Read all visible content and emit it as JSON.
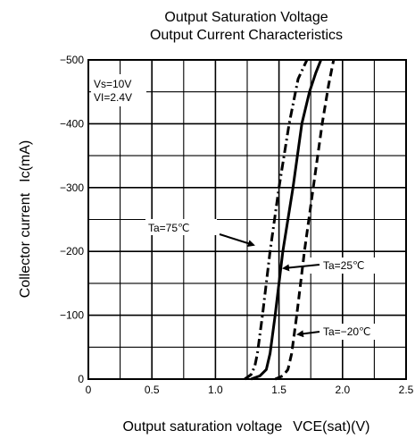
{
  "chart_data": {
    "type": "line",
    "title": [
      "Output Saturation Voltage",
      "Output Current Characteristics"
    ],
    "xlabel": "Output saturation voltage",
    "xlabel_symbol": "VCE(sat)(V)",
    "ylabel": "Collector current",
    "ylabel_symbol": "Ic(mA)",
    "xlim": [
      0,
      2.5
    ],
    "ylim": [
      0,
      -500
    ],
    "xticks": [
      {
        "v": 0,
        "label": "0"
      },
      {
        "v": 0.5,
        "label": "0.5"
      },
      {
        "v": 1.0,
        "label": "1.0"
      },
      {
        "v": 1.5,
        "label": "1.5"
      },
      {
        "v": 2.0,
        "label": "2.0"
      },
      {
        "v": 2.5,
        "label": "2.5"
      }
    ],
    "yticks": [
      {
        "v": 0,
        "label": "0"
      },
      {
        "v": -100,
        "label": "−100"
      },
      {
        "v": -200,
        "label": "−200"
      },
      {
        "v": -300,
        "label": "−300"
      },
      {
        "v": -400,
        "label": "−400"
      },
      {
        "v": -500,
        "label": "−500"
      }
    ],
    "grid": true,
    "grid_x_step": 0.25,
    "grid_y_step": 50,
    "conditions": [
      "Vs=10V",
      "VI=2.4V"
    ],
    "series": [
      {
        "name": "Ta=75℃",
        "style": "dash-dot",
        "x": [
          1.23,
          1.28,
          1.31,
          1.33,
          1.37,
          1.43,
          1.5,
          1.58,
          1.65,
          1.72
        ],
        "y": [
          0,
          -7,
          -20,
          -40,
          -100,
          -200,
          -300,
          -400,
          -470,
          -500
        ]
      },
      {
        "name": "Ta=25℃",
        "style": "solid",
        "x": [
          1.28,
          1.35,
          1.4,
          1.43,
          1.47,
          1.53,
          1.61,
          1.68,
          1.74,
          1.79,
          1.83
        ],
        "y": [
          0,
          -5,
          -15,
          -40,
          -100,
          -200,
          -300,
          -400,
          -450,
          -480,
          -500
        ]
      },
      {
        "name": "Ta=−20℃",
        "style": "dashed",
        "x": [
          1.47,
          1.53,
          1.57,
          1.6,
          1.64,
          1.7,
          1.77,
          1.84,
          1.89,
          1.93
        ],
        "y": [
          0,
          -5,
          -15,
          -40,
          -100,
          -200,
          -300,
          -400,
          -460,
          -500
        ]
      }
    ]
  }
}
